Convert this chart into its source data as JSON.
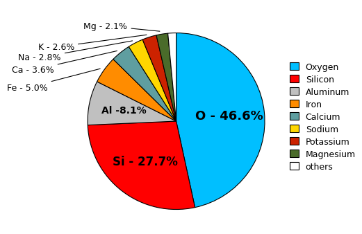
{
  "labels": [
    "Oxygen",
    "Silicon",
    "Aluminum",
    "Iron",
    "Calcium",
    "Sodium",
    "Potassium",
    "Magnesium",
    "others"
  ],
  "short_labels": [
    "O - 46.6%",
    "Si - 27.7%",
    "Al -8.1%",
    "Fe - 5.0%",
    "Ca - 3.6%",
    "Na - 2.8%",
    "K - 2.6%",
    "Mg - 2.1%",
    ""
  ],
  "values": [
    46.6,
    27.7,
    8.1,
    5.0,
    3.6,
    2.8,
    2.6,
    2.1,
    1.5
  ],
  "colors": [
    "#00BFFF",
    "#FF0000",
    "#C0C0C0",
    "#FF8C00",
    "#5F9EA0",
    "#FFD700",
    "#CC2200",
    "#4A6B2A",
    "#FFFFFF"
  ],
  "edge_color": "#000000",
  "label_fontsize": 9,
  "legend_fontsize": 9,
  "inner_label_fontsize": 13,
  "background_color": "#FFFFFF",
  "outer_labels": [
    "Fe - 5.0%",
    "Ca - 3.6%",
    "Na - 2.8%",
    "K - 2.6%",
    "Mg - 2.1%"
  ],
  "outer_indices": [
    3,
    4,
    5,
    6,
    7
  ]
}
